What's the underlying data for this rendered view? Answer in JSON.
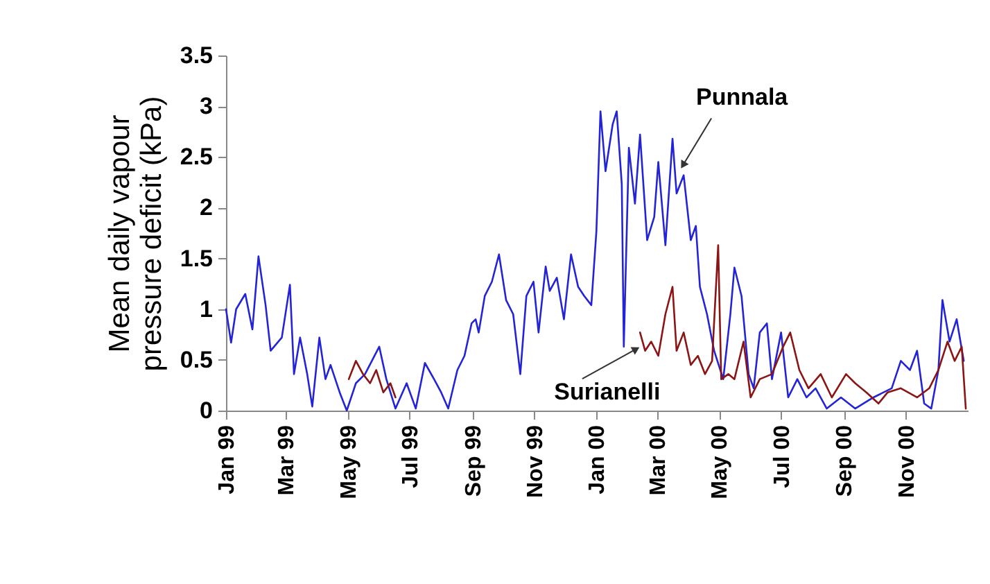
{
  "chart_data": {
    "type": "line",
    "ylabel": "Mean daily vapour pressure deficit (kPa)",
    "xlim": [
      "1999-01-01",
      "2001-01-01"
    ],
    "xticks": [
      {
        "value": "1999-01",
        "label": "Jan 99"
      },
      {
        "value": "1999-03",
        "label": "Mar 99"
      },
      {
        "value": "1999-05",
        "label": "May 99"
      },
      {
        "value": "1999-07",
        "label": "Jul 99"
      },
      {
        "value": "1999-09",
        "label": "Sep 99"
      },
      {
        "value": "1999-11",
        "label": "Nov 99"
      },
      {
        "value": "2000-01",
        "label": "Jan 00"
      },
      {
        "value": "2000-03",
        "label": "Mar 00"
      },
      {
        "value": "2000-05",
        "label": "May 00"
      },
      {
        "value": "2000-07",
        "label": "Jul 00"
      },
      {
        "value": "2000-09",
        "label": "Sep 00"
      },
      {
        "value": "2000-11",
        "label": "Nov 00"
      }
    ],
    "ylim": [
      0,
      3.5
    ],
    "yticks": [
      0,
      0.5,
      1,
      1.5,
      2,
      2.5,
      3,
      3.5
    ],
    "annotations": [
      {
        "text": "Punnala",
        "x": "2000-03-27",
        "y": 2.43
      },
      {
        "text": "Surianelli",
        "x": "2000-02-08",
        "y": 0.6
      }
    ],
    "series": [
      {
        "color": "#2323d8",
        "x": [
          "1999-01-01",
          "1999-01-06",
          "1999-01-11",
          "1999-01-20",
          "1999-01-27",
          "1999-02-02",
          "1999-02-09",
          "1999-02-14",
          "1999-02-25",
          "1999-03-05",
          "1999-03-09",
          "1999-03-15",
          "1999-03-22",
          "1999-03-27",
          "1999-04-03",
          "1999-04-09",
          "1999-04-14",
          "1999-04-23",
          "1999-04-30",
          "1999-05-09",
          "1999-05-18",
          "1999-06-01",
          "1999-06-08",
          "1999-06-17",
          "1999-06-28",
          "1999-07-07",
          "1999-07-16",
          "1999-07-25",
          "1999-08-01",
          "1999-08-08",
          "1999-08-17",
          "1999-08-24",
          "1999-08-31",
          "1999-09-04",
          "1999-09-07",
          "1999-09-13",
          "1999-09-20",
          "1999-09-27",
          "1999-10-04",
          "1999-10-11",
          "1999-10-18",
          "1999-10-24",
          "1999-10-31",
          "1999-11-05",
          "1999-11-12",
          "1999-11-16",
          "1999-11-23",
          "1999-11-30",
          "1999-12-07",
          "1999-12-14",
          "1999-12-20",
          "1999-12-27",
          "2000-01-01",
          "2000-01-05",
          "2000-01-10",
          "2000-01-17",
          "2000-01-21",
          "2000-01-26",
          "2000-01-28",
          "2000-02-02",
          "2000-02-08",
          "2000-02-13",
          "2000-02-20",
          "2000-02-27",
          "2000-03-02",
          "2000-03-09",
          "2000-03-16",
          "2000-03-20",
          "2000-03-27",
          "2000-04-03",
          "2000-04-08",
          "2000-04-12",
          "2000-04-19",
          "2000-04-26",
          "2000-05-05",
          "2000-05-12",
          "2000-05-16",
          "2000-05-23",
          "2000-05-30",
          "2000-06-04",
          "2000-06-10",
          "2000-06-17",
          "2000-06-22",
          "2000-07-01",
          "2000-07-08",
          "2000-07-17",
          "2000-07-26",
          "2000-08-04",
          "2000-08-15",
          "2000-08-29",
          "2000-09-12",
          "2000-09-30",
          "2000-10-18",
          "2000-10-27",
          "2000-11-05",
          "2000-11-12",
          "2000-11-19",
          "2000-11-26",
          "2000-12-03",
          "2000-12-07",
          "2000-12-14",
          "2000-12-21",
          "2000-12-28"
        ],
        "values": [
          1.0,
          0.67,
          1.0,
          1.15,
          0.8,
          1.52,
          1.04,
          0.59,
          0.72,
          1.24,
          0.36,
          0.72,
          0.36,
          0.04,
          0.72,
          0.31,
          0.45,
          0.18,
          0.0,
          0.27,
          0.36,
          0.63,
          0.31,
          0.02,
          0.27,
          0.02,
          0.47,
          0.31,
          0.18,
          0.02,
          0.4,
          0.54,
          0.86,
          0.9,
          0.77,
          1.13,
          1.27,
          1.54,
          1.09,
          0.95,
          0.36,
          1.13,
          1.27,
          0.77,
          1.42,
          1.18,
          1.31,
          0.9,
          1.54,
          1.22,
          1.13,
          1.04,
          1.77,
          2.95,
          2.36,
          2.82,
          2.95,
          2.23,
          0.63,
          2.59,
          2.04,
          2.72,
          1.68,
          1.91,
          2.45,
          1.63,
          2.68,
          2.14,
          2.32,
          1.68,
          1.82,
          1.22,
          0.95,
          0.59,
          0.31,
          0.95,
          1.41,
          1.13,
          0.36,
          0.22,
          0.77,
          0.86,
          0.31,
          0.77,
          0.13,
          0.31,
          0.13,
          0.22,
          0.02,
          0.13,
          0.02,
          0.13,
          0.22,
          0.49,
          0.4,
          0.59,
          0.07,
          0.02,
          0.4,
          1.09,
          0.68,
          0.9,
          0.49
        ]
      },
      {
        "color": "#8b1414",
        "x": [
          "1999-05-02",
          "1999-05-09",
          "1999-05-16",
          "1999-05-23",
          "1999-05-29",
          "1999-06-05",
          "1999-06-12",
          "1999-06-17",
          "1999-11-01",
          "2000-02-13",
          "2000-02-18",
          "2000-02-24",
          "2000-03-02",
          "2000-03-09",
          "2000-03-16",
          "2000-03-20",
          "2000-03-27",
          "2000-04-03",
          "2000-04-10",
          "2000-04-17",
          "2000-04-24",
          "2000-04-30",
          "2000-05-03",
          "2000-05-10",
          "2000-05-16",
          "2000-05-25",
          "2000-06-01",
          "2000-06-10",
          "2000-06-22",
          "2000-07-03",
          "2000-07-10",
          "2000-07-19",
          "2000-07-28",
          "2000-08-09",
          "2000-08-20",
          "2000-09-03",
          "2000-09-12",
          "2000-09-23",
          "2000-10-05",
          "2000-10-14",
          "2000-10-27",
          "2000-11-12",
          "2000-11-24",
          "2000-12-03",
          "2000-12-12",
          "2000-12-19",
          "2000-12-26",
          "2000-12-30"
        ],
        "values": [
          0.31,
          0.49,
          0.36,
          0.27,
          0.4,
          0.18,
          0.27,
          0.13,
          null,
          0.77,
          0.59,
          0.68,
          0.54,
          0.95,
          1.22,
          0.59,
          0.77,
          0.45,
          0.54,
          0.36,
          0.49,
          1.63,
          0.31,
          0.36,
          0.31,
          0.68,
          0.13,
          0.31,
          0.36,
          0.63,
          0.77,
          0.4,
          0.22,
          0.36,
          0.13,
          0.36,
          0.27,
          0.18,
          0.07,
          0.18,
          0.22,
          0.13,
          0.22,
          0.4,
          0.68,
          0.49,
          0.63,
          0.02
        ]
      }
    ]
  }
}
